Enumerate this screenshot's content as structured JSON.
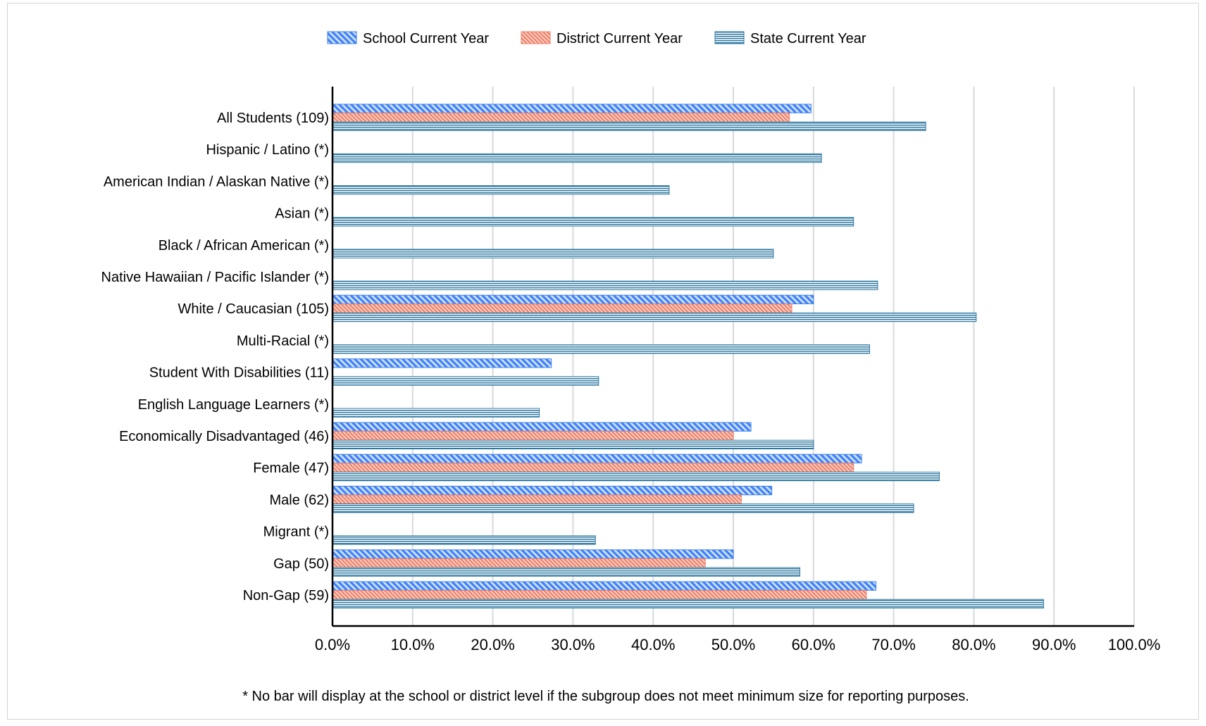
{
  "chart_data": {
    "type": "bar",
    "orientation": "horizontal",
    "title": "",
    "xlabel": "",
    "ylabel": "",
    "xlim": [
      0,
      100
    ],
    "grid": true,
    "legend_position": "top-center",
    "categories": [
      "All Students (109)",
      "Hispanic / Latino (*)",
      "American Indian / Alaskan Native (*)",
      "Asian (*)",
      "Black / African American (*)",
      "Native Hawaiian / Pacific Islander (*)",
      "White / Caucasian (105)",
      "Multi-Racial (*)",
      "Student With Disabilities (11)",
      "English Language Learners (*)",
      "Economically Disadvantaged (46)",
      "Female (47)",
      "Male (62)",
      "Migrant (*)",
      "Gap (50)",
      "Non-Gap (59)"
    ],
    "x_ticks": [
      "0.0%",
      "10.0%",
      "20.0%",
      "30.0%",
      "40.0%",
      "50.0%",
      "60.0%",
      "70.0%",
      "80.0%",
      "90.0%",
      "100.0%"
    ],
    "series": [
      {
        "name": "School Current Year",
        "color": "#3f82f0",
        "pattern": "diagonal-hatch",
        "values": [
          59.7,
          null,
          null,
          null,
          null,
          null,
          60.0,
          null,
          27.3,
          null,
          52.2,
          66.0,
          54.8,
          null,
          50.0,
          67.8
        ]
      },
      {
        "name": "District Current Year",
        "color": "#ef7f67",
        "pattern": "dense-diagonal-hatch",
        "values": [
          57.0,
          null,
          null,
          null,
          null,
          null,
          57.3,
          null,
          null,
          null,
          50.0,
          65.0,
          51.0,
          null,
          46.5,
          66.6
        ]
      },
      {
        "name": "State Current Year",
        "color": "#2f79a0",
        "pattern": "horizontal-lines",
        "values": [
          74.0,
          61.0,
          42.0,
          65.0,
          55.0,
          68.0,
          80.3,
          67.0,
          33.2,
          25.8,
          60.0,
          75.7,
          72.5,
          32.8,
          58.3,
          88.7
        ]
      }
    ],
    "footnote": "* No bar will display at the school or district level if the subgroup does not meet minimum size for reporting purposes."
  }
}
